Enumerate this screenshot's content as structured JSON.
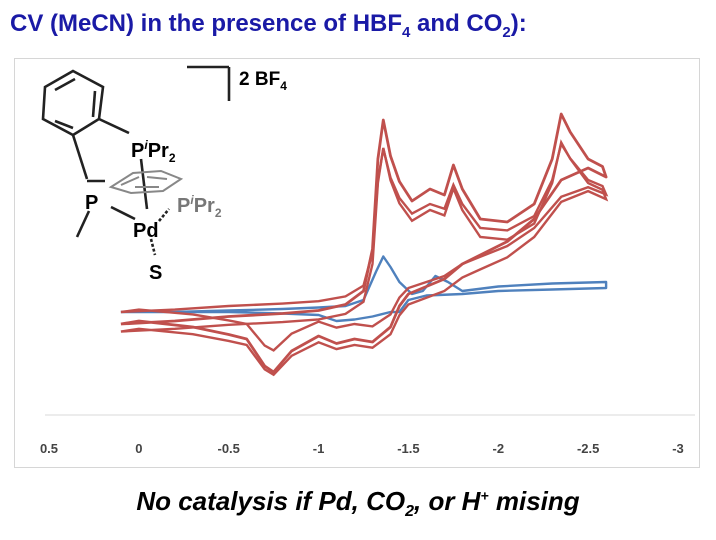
{
  "slide": {
    "title_prefix": "CV (MeCN) in the presence of HBF",
    "title_sub1": "4",
    "title_mid": " and CO",
    "title_sub2": "2",
    "title_suffix": "):",
    "caption_prefix": "No catalysis if Pd, CO",
    "caption_sub": "2",
    "caption_mid": ", or H",
    "caption_sup": "+",
    "caption_suffix": " mising"
  },
  "structure": {
    "counterion": "2 BF",
    "counterion_sub": "4",
    "p_top": "P",
    "p_top_sup": "i",
    "p_top_rest": "Pr",
    "p_top_sub": "2",
    "p_left": "P",
    "p_right": "P",
    "p_right_sup": "i",
    "p_right_rest": "Pr",
    "p_right_sub": "2",
    "metal": "Pd",
    "solvent": "S"
  },
  "colors": {
    "title": "#1a1aa6",
    "red_trace": "#c0504d",
    "blue_trace": "#4f81bd",
    "axis_text": "#444444"
  },
  "chart_data": {
    "type": "line",
    "title": "",
    "xlabel": "",
    "ylabel": "",
    "xlim": [
      0.5,
      -3
    ],
    "x_ticks": [
      "0.5",
      "0",
      "-0.5",
      "-1",
      "-1.5",
      "-2",
      "-2.5",
      "-3"
    ],
    "y_ticks_shown": false,
    "grid": false,
    "series": [
      {
        "color": "#4f81bd",
        "points": [
          [
            0.1,
            -0.02
          ],
          [
            -0.2,
            -0.02
          ],
          [
            -0.5,
            -0.01
          ],
          [
            -0.8,
            0.0
          ],
          [
            -1.0,
            0.01
          ],
          [
            -1.15,
            0.02
          ],
          [
            -1.25,
            0.06
          ],
          [
            -1.32,
            0.25
          ],
          [
            -1.36,
            0.35
          ],
          [
            -1.4,
            0.28
          ],
          [
            -1.45,
            0.18
          ],
          [
            -1.52,
            0.1
          ],
          [
            -1.58,
            0.12
          ],
          [
            -1.65,
            0.22
          ],
          [
            -1.72,
            0.18
          ],
          [
            -1.8,
            0.12
          ],
          [
            -2.0,
            0.15
          ],
          [
            -2.3,
            0.17
          ],
          [
            -2.6,
            0.18
          ],
          [
            -2.6,
            0.14
          ],
          [
            -2.3,
            0.13
          ],
          [
            -2.0,
            0.12
          ],
          [
            -1.8,
            0.1
          ],
          [
            -1.6,
            0.09
          ],
          [
            -1.5,
            0.06
          ],
          [
            -1.45,
            -0.02
          ],
          [
            -1.4,
            -0.02
          ],
          [
            -1.3,
            -0.05
          ],
          [
            -1.2,
            -0.07
          ],
          [
            -1.1,
            -0.08
          ],
          [
            -1.0,
            -0.04
          ],
          [
            -0.8,
            -0.03
          ],
          [
            -0.5,
            -0.02
          ],
          [
            -0.2,
            -0.02
          ],
          [
            0.1,
            -0.02
          ]
        ]
      },
      {
        "color": "#c0504d",
        "points": [
          [
            0.1,
            -0.1
          ],
          [
            -0.2,
            -0.08
          ],
          [
            -0.5,
            -0.05
          ],
          [
            -0.8,
            -0.03
          ],
          [
            -1.0,
            -0.01
          ],
          [
            -1.15,
            0.03
          ],
          [
            -1.25,
            0.12
          ],
          [
            -1.3,
            0.4
          ],
          [
            -1.33,
            1.0
          ],
          [
            -1.36,
            1.26
          ],
          [
            -1.4,
            1.02
          ],
          [
            -1.45,
            0.85
          ],
          [
            -1.52,
            0.72
          ],
          [
            -1.62,
            0.8
          ],
          [
            -1.7,
            0.76
          ],
          [
            -1.75,
            0.96
          ],
          [
            -1.8,
            0.8
          ],
          [
            -1.9,
            0.6
          ],
          [
            -2.05,
            0.58
          ],
          [
            -2.2,
            0.7
          ],
          [
            -2.3,
            1.0
          ],
          [
            -2.35,
            1.3
          ],
          [
            -2.4,
            1.18
          ],
          [
            -2.5,
            1.0
          ],
          [
            -2.58,
            0.95
          ],
          [
            -2.6,
            0.88
          ],
          [
            -2.5,
            0.94
          ],
          [
            -2.35,
            0.86
          ],
          [
            -2.2,
            0.6
          ],
          [
            -2.05,
            0.45
          ],
          [
            -1.9,
            0.36
          ],
          [
            -1.8,
            0.3
          ],
          [
            -1.7,
            0.2
          ],
          [
            -1.6,
            0.15
          ],
          [
            -1.5,
            0.1
          ],
          [
            -1.45,
            0.02
          ],
          [
            -1.4,
            -0.12
          ],
          [
            -1.3,
            -0.22
          ],
          [
            -1.2,
            -0.2
          ],
          [
            -1.1,
            -0.23
          ],
          [
            -1.0,
            -0.18
          ],
          [
            -0.85,
            -0.28
          ],
          [
            -0.75,
            -0.42
          ],
          [
            -0.7,
            -0.38
          ],
          [
            -0.6,
            -0.2
          ],
          [
            -0.5,
            -0.17
          ],
          [
            -0.3,
            -0.12
          ],
          [
            0.0,
            -0.08
          ],
          [
            0.1,
            -0.1
          ]
        ]
      }
    ]
  }
}
